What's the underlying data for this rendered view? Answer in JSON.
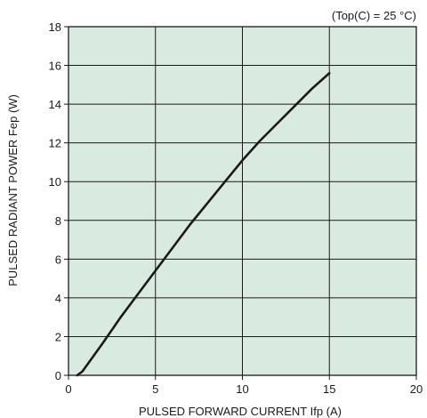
{
  "chart_data": {
    "type": "line",
    "title": "",
    "annotation": "(Top(C) = 25 °C)",
    "xlabel": "PULSED FORWARD CURRENT Ifp (A)",
    "ylabel": "PULSED RADIANT POWER Fep (W)",
    "xlim": [
      0,
      20
    ],
    "ylim": [
      0,
      18
    ],
    "x_ticks": [
      "0",
      "5",
      "10",
      "15",
      "20"
    ],
    "y_ticks": [
      "0",
      "2",
      "4",
      "6",
      "8",
      "10",
      "12",
      "14",
      "16",
      "18"
    ],
    "grid": true,
    "colors": {
      "plot_bg": "#d9ebe1",
      "grid": "#1a1a1a",
      "line": "#1a1a1a"
    },
    "series": [
      {
        "x": [
          0.5,
          0.8,
          1.2,
          2.0,
          3.0,
          4.0,
          5.0,
          6.0,
          7.0,
          8.0,
          9.0,
          10.0,
          11.0,
          12.0,
          13.0,
          14.0,
          15.0
        ],
        "y": [
          0.0,
          0.2,
          0.7,
          1.7,
          3.0,
          4.2,
          5.4,
          6.6,
          7.8,
          8.9,
          10.0,
          11.1,
          12.1,
          13.0,
          13.9,
          14.8,
          15.6
        ]
      }
    ]
  }
}
